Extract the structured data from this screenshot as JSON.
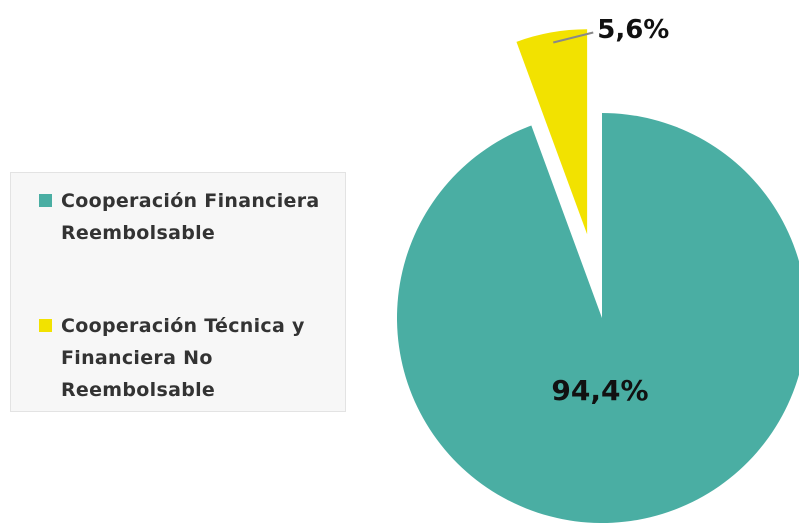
{
  "chart_data": {
    "type": "pie",
    "categories": [
      "Cooperación Financiera Reembolsable",
      "Cooperación Técnica y Financiera No Reembolsable"
    ],
    "values": [
      94.4,
      5.6
    ],
    "value_labels": [
      "94,4%",
      "5,6%"
    ],
    "colors": [
      "#4aaea3",
      "#f2e200"
    ],
    "exploded": [
      false,
      true
    ]
  }
}
